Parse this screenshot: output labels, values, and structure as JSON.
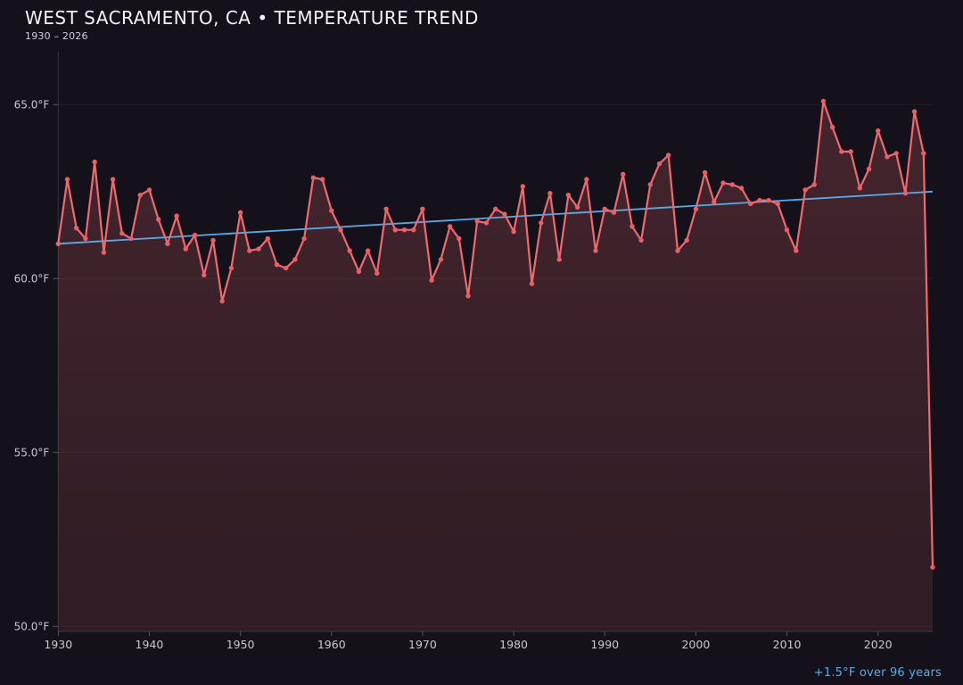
{
  "header": {
    "title": "WEST SACRAMENTO, CA • TEMPERATURE TREND",
    "subtitle": "1930 – 2026"
  },
  "annotation": {
    "text": "+1.5°F over 96 years",
    "color": "#58abe8"
  },
  "colors": {
    "background": "#14111a",
    "line": "#ef6a70",
    "marker": "#e85f68",
    "area_top": "rgba(239,106,112,0.22)",
    "area_bottom": "rgba(239,106,112,0.12)",
    "trend": "#58abe8",
    "grid": "rgba(255,255,255,0.055)",
    "axis": "rgba(255,255,255,0.14)",
    "tick_mark": "#56525e",
    "tick_label": "#c9c9cf"
  },
  "chart_data": {
    "type": "line",
    "title": "WEST SACRAMENTO, CA • TEMPERATURE TREND",
    "subtitle": "1930 – 2026",
    "xlabel": "",
    "ylabel": "",
    "xlim": [
      1930,
      2026
    ],
    "ylim": [
      49.9,
      66.5
    ],
    "grid": true,
    "legend_position": "none",
    "x_tick_years": [
      1930,
      1940,
      1950,
      1960,
      1970,
      1980,
      1990,
      2000,
      2010,
      2020
    ],
    "y_ticks": [
      {
        "value": 65,
        "label": "65.0°F"
      },
      {
        "value": 60,
        "label": "60.0°F"
      },
      {
        "value": 55,
        "label": "55.0°F"
      },
      {
        "value": 50,
        "label": "50.0°F"
      }
    ],
    "series": [
      {
        "name": "annual-mean-temperature-f",
        "start_year": 1930,
        "end_year": 2026,
        "values": [
          61.0,
          62.85,
          61.45,
          61.15,
          63.35,
          60.75,
          62.85,
          61.3,
          61.15,
          62.4,
          62.55,
          61.7,
          61.0,
          61.8,
          60.85,
          61.25,
          60.1,
          61.1,
          59.35,
          60.3,
          61.9,
          60.8,
          60.85,
          61.15,
          60.4,
          60.3,
          60.55,
          61.15,
          62.9,
          62.85,
          61.95,
          61.4,
          60.8,
          60.2,
          60.8,
          60.15,
          62.0,
          61.4,
          61.4,
          61.4,
          62.0,
          59.95,
          60.55,
          61.5,
          61.15,
          59.5,
          61.65,
          61.6,
          62.0,
          61.85,
          61.35,
          62.65,
          59.85,
          61.6,
          62.45,
          60.55,
          62.4,
          62.05,
          62.85,
          60.8,
          62.0,
          61.9,
          63.0,
          61.5,
          61.1,
          62.7,
          63.3,
          63.55,
          60.8,
          61.1,
          62.0,
          63.05,
          62.2,
          62.75,
          62.7,
          62.6,
          62.15,
          62.25,
          62.25,
          62.15,
          61.4,
          60.8,
          62.55,
          62.7,
          65.1,
          64.35,
          63.65,
          63.65,
          62.6,
          63.15,
          64.25,
          63.5,
          63.6,
          62.45,
          64.8,
          63.6,
          51.7
        ]
      }
    ],
    "trendline": {
      "start_year": 1930,
      "start_value": 61.0,
      "end_year": 2026,
      "end_value": 62.5,
      "label": "+1.5°F over 96 years"
    }
  }
}
